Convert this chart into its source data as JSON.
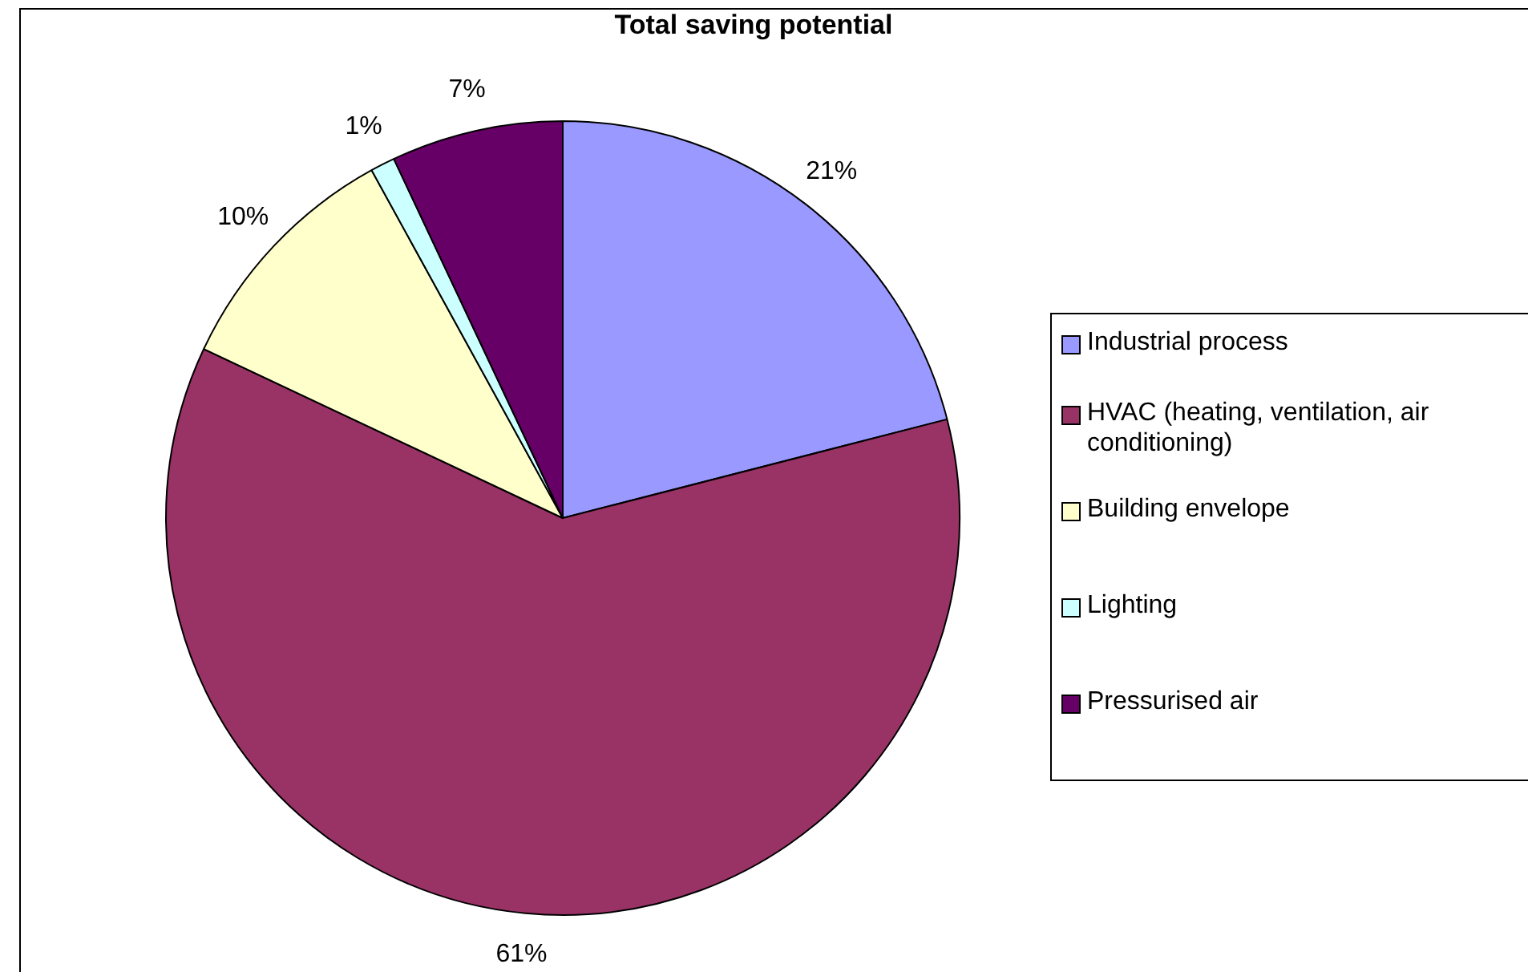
{
  "chart_data": {
    "type": "pie",
    "title": "Total saving potential",
    "categories": [
      "Industrial process",
      "HVAC (heating, ventilation, air conditioning)",
      "Building envelope",
      "Lighting",
      "Pressurised air"
    ],
    "values": [
      21,
      61,
      10,
      1,
      7
    ],
    "colors": [
      "#9999ff",
      "#993366",
      "#ffffcc",
      "#ccffff",
      "#660066"
    ],
    "value_labels": [
      "21%",
      "61%",
      "10%",
      "1%",
      "7%"
    ],
    "legend": "right"
  }
}
